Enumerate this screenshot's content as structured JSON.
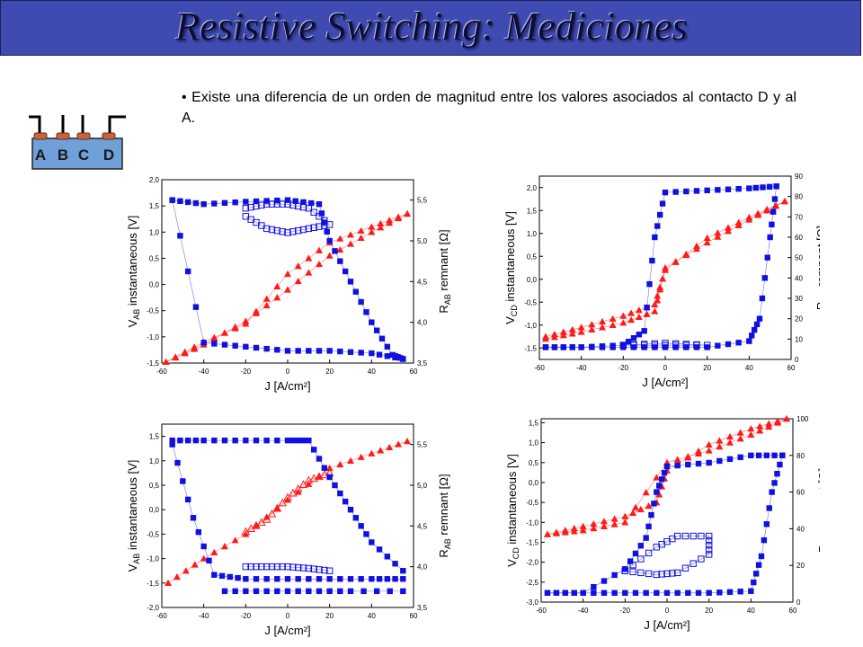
{
  "slide": {
    "title": "Resistive Switching: Mediciones",
    "bullet_marker": "•",
    "bullet_text": "Existe una diferencia de un orden de magnitud entre los valores asociados al contacto D y al A."
  },
  "device": {
    "contacts": [
      "A",
      "B",
      "C",
      "D"
    ]
  },
  "colors": {
    "title_bar": "#3f4bb0",
    "instantaneous": "#ff1a1a",
    "remnant": "#1010e0",
    "device_body": "#6fa0d8",
    "contact_cap": "#c8643c"
  },
  "chart_data": [
    {
      "type": "scatter",
      "xlabel": "J [A/cm²]",
      "ylabel_left": "V_AB instantaneous [V]",
      "ylabel_right": "R_AB remnant [Ω]",
      "xlim": [
        -60,
        60
      ],
      "ylim_left": [
        -1.5,
        2.0
      ],
      "ylim_right": [
        3.5,
        5.75
      ],
      "xticks": [
        "-60",
        "-40",
        "-20",
        "0",
        "20",
        "40",
        "60"
      ],
      "yticks_left": [
        "-1,5",
        "-1,0",
        "-0,5",
        "0,0",
        "0,5",
        "1,0",
        "1,5",
        "2,0"
      ],
      "yticks_right": [
        "3,5",
        "4,0",
        "4,5",
        "5,0",
        "5,5"
      ],
      "series": [
        {
          "axis": "left",
          "marker": "triangle",
          "color": "#ff1a1a",
          "x": [
            -58,
            -40,
            -20,
            0,
            20,
            40,
            57
          ],
          "y": [
            -1.48,
            -1.1,
            -0.75,
            0.2,
            0.8,
            1.1,
            1.35
          ]
        },
        {
          "axis": "left",
          "marker": "triangle",
          "color": "#ff1a1a",
          "x": [
            57,
            40,
            20,
            0,
            -20,
            -40,
            -58
          ],
          "y": [
            1.35,
            1.0,
            0.55,
            -0.1,
            -0.7,
            -1.15,
            -1.48
          ]
        },
        {
          "axis": "right",
          "marker": "square",
          "color": "#1010e0",
          "x": [
            -55,
            -40,
            -20,
            0,
            15,
            20,
            30,
            40,
            50,
            55
          ],
          "y": [
            5.5,
            5.45,
            5.48,
            5.5,
            5.45,
            5.0,
            4.5,
            4.0,
            3.6,
            3.55
          ]
        },
        {
          "axis": "right",
          "marker": "square",
          "color": "#1010e0",
          "x": [
            55,
            40,
            20,
            0,
            -20,
            -40,
            -55
          ],
          "y": [
            3.55,
            3.62,
            3.65,
            3.65,
            3.7,
            3.75,
            5.5
          ]
        },
        {
          "axis": "right",
          "marker": "open-square",
          "color": "#1010e0",
          "x": [
            -20,
            -10,
            0,
            10,
            20,
            10,
            0,
            -10,
            -20
          ],
          "y": [
            5.4,
            5.45,
            5.45,
            5.4,
            5.2,
            5.15,
            5.1,
            5.15,
            5.3
          ]
        }
      ]
    },
    {
      "type": "scatter",
      "xlabel": "J [A/cm²]",
      "ylabel_left": "V_CD instantaneous [V]",
      "ylabel_right": "R_CD remnant [Ω]",
      "xlim": [
        -60,
        60
      ],
      "ylim_left": [
        -1.75,
        2.25
      ],
      "ylim_right": [
        0,
        90
      ],
      "xticks": [
        "-60",
        "-40",
        "-20",
        "0",
        "20",
        "40",
        "60"
      ],
      "yticks_left": [
        "-1,5",
        "-1,0",
        "-0,5",
        "0,0",
        "0,5",
        "1,0",
        "1,5",
        "2,0"
      ],
      "yticks_right": [
        "0",
        "10",
        "20",
        "30",
        "40",
        "50",
        "60",
        "70",
        "80",
        "90"
      ],
      "series": [
        {
          "axis": "left",
          "marker": "triangle",
          "color": "#ff1a1a",
          "x": [
            -57,
            -40,
            -20,
            -5,
            0,
            20,
            40,
            57
          ],
          "y": [
            -1.25,
            -1.05,
            -0.8,
            -0.55,
            0.2,
            0.9,
            1.35,
            1.7
          ]
        },
        {
          "axis": "left",
          "marker": "triangle",
          "color": "#ff1a1a",
          "x": [
            57,
            40,
            20,
            0,
            -5,
            -20,
            -40,
            -57
          ],
          "y": [
            1.7,
            1.3,
            0.8,
            0.25,
            -0.7,
            -0.95,
            -1.15,
            -1.3
          ]
        },
        {
          "axis": "right",
          "marker": "square",
          "color": "#1010e0",
          "x": [
            -57,
            -40,
            -20,
            -10,
            -5,
            0,
            20,
            40,
            53
          ],
          "y": [
            6,
            6,
            7,
            14,
            60,
            82,
            83,
            84,
            85
          ]
        },
        {
          "axis": "right",
          "marker": "square",
          "color": "#1010e0",
          "x": [
            53,
            50,
            45,
            40,
            20,
            0,
            -20,
            -40,
            -57
          ],
          "y": [
            85,
            60,
            20,
            9,
            6,
            6,
            6,
            6,
            6
          ]
        },
        {
          "axis": "right",
          "marker": "open-square",
          "color": "#1010e0",
          "x": [
            -20,
            0,
            20,
            0,
            -20
          ],
          "y": [
            7,
            7,
            7,
            8,
            7
          ]
        }
      ]
    },
    {
      "type": "scatter",
      "xlabel": "J [A/cm²]",
      "ylabel_left": "V_AB instantaneous [V]",
      "ylabel_right": "R_AB remnant [Ω]",
      "xlim": [
        -60,
        60
      ],
      "ylim_left": [
        -2.0,
        1.75
      ],
      "ylim_right": [
        3.5,
        5.75
      ],
      "xticks": [
        "-60",
        "-40",
        "-20",
        "0",
        "20",
        "40",
        "60"
      ],
      "yticks_left": [
        "-2,0",
        "-1,5",
        "-1,0",
        "-0,5",
        "0,0",
        "0,5",
        "1,0",
        "1,5"
      ],
      "yticks_right": [
        "3,5",
        "4,0",
        "4,5",
        "5,0",
        "5,5"
      ],
      "series": [
        {
          "axis": "left",
          "marker": "triangle",
          "color": "#ff1a1a",
          "x": [
            -57,
            -40,
            -20,
            0,
            20,
            40,
            57
          ],
          "y": [
            -1.5,
            -1.0,
            -0.5,
            0.2,
            0.85,
            1.15,
            1.4
          ]
        },
        {
          "axis": "left",
          "marker": "open-triangle",
          "color": "#ff1a1a",
          "x": [
            -20,
            -10,
            0,
            10,
            20
          ],
          "y": [
            -0.45,
            -0.2,
            0.25,
            0.6,
            0.75
          ]
        },
        {
          "axis": "right",
          "marker": "square",
          "color": "#1010e0",
          "x": [
            -55,
            -40,
            -20,
            0,
            10,
            20,
            30,
            40,
            55
          ],
          "y": [
            5.55,
            5.55,
            5.55,
            5.55,
            5.55,
            5.1,
            4.7,
            4.3,
            3.95
          ]
        },
        {
          "axis": "right",
          "marker": "square",
          "color": "#1010e0",
          "x": [
            55,
            40,
            20,
            0,
            -20,
            -35,
            -45,
            -55
          ],
          "y": [
            3.85,
            3.85,
            3.85,
            3.85,
            3.85,
            3.9,
            4.6,
            5.5
          ]
        },
        {
          "axis": "right",
          "marker": "square",
          "color": "#1010e0",
          "x": [
            -30,
            -10,
            10,
            30,
            55
          ],
          "y": [
            3.7,
            3.7,
            3.7,
            3.7,
            3.7
          ]
        },
        {
          "axis": "right",
          "marker": "open-square",
          "color": "#1010e0",
          "x": [
            -20,
            -10,
            0,
            10,
            20
          ],
          "y": [
            4.0,
            4.0,
            4.0,
            3.98,
            3.95
          ]
        }
      ]
    },
    {
      "type": "scatter",
      "xlabel": "J [A/cm²]",
      "ylabel_left": "V_CD instantaneous [V]",
      "ylabel_right": "R_CD remnant [Ω]",
      "xlim": [
        -60,
        60
      ],
      "ylim_left": [
        -3.0,
        1.6
      ],
      "ylim_right": [
        0,
        100
      ],
      "xticks": [
        "-60",
        "-40",
        "-20",
        "0",
        "20",
        "40",
        "60"
      ],
      "yticks_left": [
        "-3,0",
        "-2,5",
        "-2,0",
        "-1,5",
        "-1,0",
        "-0,5",
        "0,0",
        "0,5",
        "1,0",
        "1,5"
      ],
      "yticks_right": [
        "0",
        "20",
        "40",
        "60",
        "80",
        "100"
      ],
      "series": [
        {
          "axis": "left",
          "marker": "triangle",
          "color": "#ff1a1a",
          "x": [
            -57,
            -40,
            -20,
            -5,
            0,
            20,
            40,
            57
          ],
          "y": [
            -1.3,
            -1.1,
            -0.85,
            -0.5,
            0.3,
            0.95,
            1.35,
            1.6
          ]
        },
        {
          "axis": "left",
          "marker": "triangle",
          "color": "#ff1a1a",
          "x": [
            57,
            40,
            20,
            0,
            -20,
            -40,
            -57
          ],
          "y": [
            1.6,
            1.2,
            0.8,
            0.5,
            -1.0,
            -1.2,
            -1.3
          ]
        },
        {
          "axis": "right",
          "marker": "square",
          "color": "#1010e0",
          "x": [
            -57,
            -40,
            -20,
            -10,
            -5,
            0,
            20,
            40,
            55
          ],
          "y": [
            5,
            5,
            18,
            35,
            60,
            74,
            76,
            80,
            80
          ]
        },
        {
          "axis": "right",
          "marker": "square",
          "color": "#1010e0",
          "x": [
            55,
            50,
            45,
            40,
            20,
            0,
            -20,
            -40,
            -57
          ],
          "y": [
            80,
            60,
            25,
            6,
            5,
            5,
            5,
            5,
            5
          ]
        },
        {
          "axis": "right",
          "marker": "open-square",
          "color": "#1010e0",
          "x": [
            -20,
            -5,
            5,
            20,
            20,
            5,
            -5,
            -20
          ],
          "y": [
            17,
            30,
            36,
            36,
            26,
            16,
            15,
            17
          ]
        }
      ]
    }
  ]
}
